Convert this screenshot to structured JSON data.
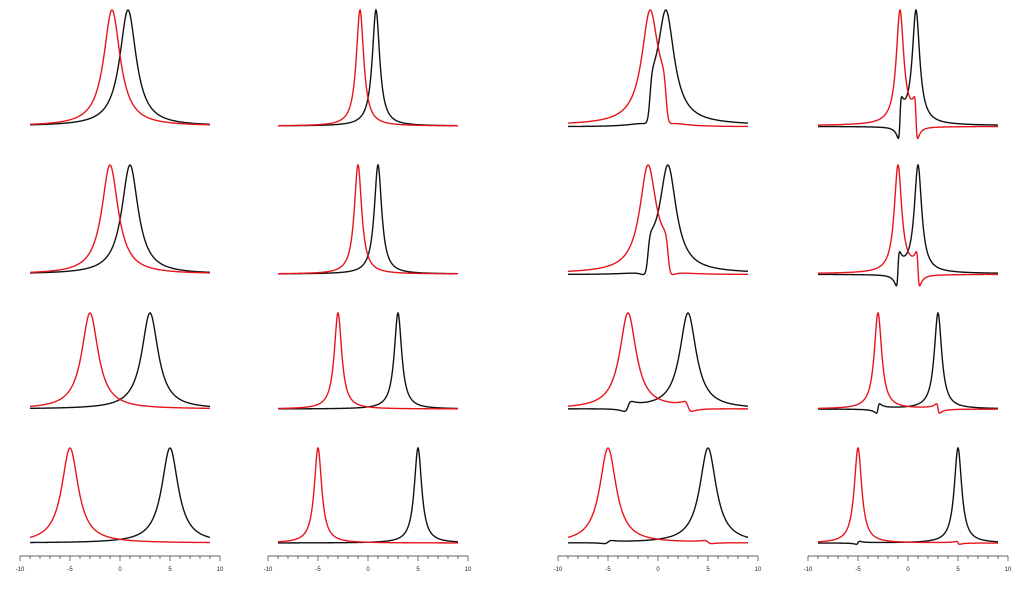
{
  "chart_data": {
    "type": "line",
    "layout": "4 rows × 4 columns of small-multiple spectral line plots",
    "x_range": [
      -10,
      10
    ],
    "x_tick_values": [
      -10,
      -5,
      0,
      5,
      10
    ],
    "x_tick_labels": [
      "-10",
      "-5",
      "0",
      "5",
      "10"
    ],
    "series_colors": {
      "red": "#e8141b",
      "black": "#111111"
    },
    "grid": false,
    "legend": "none",
    "columns": [
      {
        "profile": "lorentzian",
        "width": 1.0,
        "interference": false
      },
      {
        "profile": "lorentzian",
        "width": 0.45,
        "interference": false
      },
      {
        "profile": "fano",
        "width": 1.0,
        "interference": true
      },
      {
        "profile": "fano",
        "width": 0.45,
        "interference": true
      }
    ],
    "rows": [
      {
        "peak_separation": 1.6,
        "approx_peak_positions": {
          "red": -0.8,
          "black": 0.8
        }
      },
      {
        "peak_separation": 2.0,
        "approx_peak_positions": {
          "red": -1.0,
          "black": 1.0
        }
      },
      {
        "peak_separation": 6.0,
        "approx_peak_positions": {
          "red": -3.0,
          "black": 3.0
        }
      },
      {
        "peak_separation": 10.0,
        "approx_peak_positions": {
          "red": -5.0,
          "black": 5.0
        }
      }
    ]
  }
}
